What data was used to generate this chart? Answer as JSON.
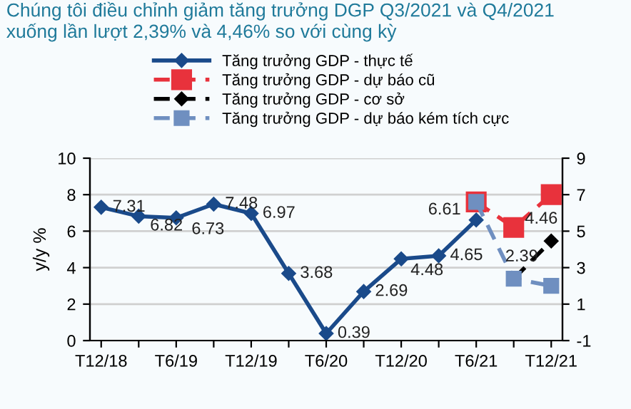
{
  "chart_data": {
    "type": "line",
    "title": "Chúng tôi điều chỉnh giảm tăng trưởng DGP Q3/2021 và Q4/2021\nxuống lần lượt 2,39% và 4,46% so với cùng kỳ",
    "ylabel": "y/y %",
    "categories": [
      "T12/18",
      null,
      "T6/19",
      null,
      "T12/19",
      null,
      "T6/20",
      null,
      "T12/20",
      null,
      "T6/21",
      null,
      "T12/21"
    ],
    "series": [
      {
        "name": "Tăng trưởng GDP - thực tế",
        "color": "#1a4a8a",
        "marker": "diamond",
        "line_style": "solid",
        "values": [
          7.31,
          6.82,
          6.73,
          7.48,
          6.97,
          3.68,
          0.39,
          2.69,
          4.48,
          4.65,
          6.61,
          null,
          null
        ],
        "value_labels": [
          "7.31",
          "6.82",
          "6.73",
          "7.48",
          "6.97",
          "3.68",
          "0.39",
          "2.69",
          "4.48",
          "4.65",
          "6.61",
          null,
          null
        ]
      },
      {
        "name": "Tăng trưởng GDP - dự báo cũ",
        "color": "#e8323c",
        "marker": "square",
        "line_style": "dashed",
        "axis": "y2",
        "values": [
          null,
          null,
          null,
          null,
          null,
          null,
          null,
          null,
          null,
          null,
          6.6,
          5.2,
          7.0
        ]
      },
      {
        "name": "Tăng trưởng GDP - cơ sở",
        "color": "#000000",
        "marker": "diamond",
        "line_style": "dashed",
        "axis": "y2",
        "values": [
          null,
          null,
          null,
          null,
          null,
          null,
          null,
          null,
          null,
          null,
          null,
          2.39,
          4.46
        ],
        "value_labels": [
          null,
          null,
          null,
          null,
          null,
          null,
          null,
          null,
          null,
          null,
          null,
          null,
          "4.46"
        ]
      },
      {
        "name": "Tăng trưởng GDP - dự báo kém tích cực",
        "color": "#6f8fc0",
        "marker": "square",
        "line_style": "dashed",
        "axis": "y2",
        "values": [
          null,
          null,
          null,
          null,
          null,
          null,
          null,
          null,
          null,
          null,
          6.6,
          2.39,
          2.0
        ],
        "value_labels": [
          null,
          null,
          null,
          null,
          null,
          null,
          null,
          null,
          null,
          null,
          null,
          "2.39",
          null
        ]
      }
    ],
    "ylim": [
      0,
      10
    ],
    "yticks": [
      0,
      2,
      4,
      6,
      8,
      10
    ],
    "y2lim": [
      -1,
      9
    ],
    "y2ticks": [
      -1,
      1,
      3,
      5,
      7,
      9
    ],
    "grid": "y",
    "legend": "top"
  }
}
